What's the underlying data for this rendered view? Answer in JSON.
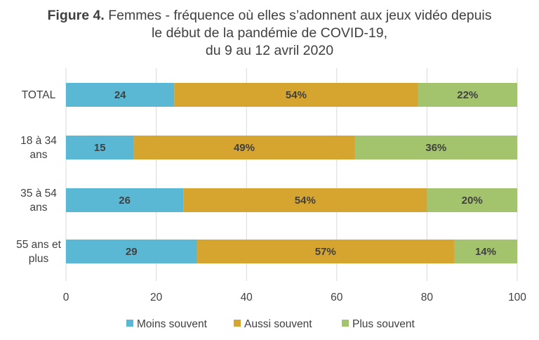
{
  "chart_data": {
    "type": "bar",
    "orientation": "horizontal",
    "stacked": true,
    "title_prefix": "Figure 4.",
    "title_lines": [
      "Femmes - fréquence où elles s’adonnent aux jeux vidéo depuis",
      "le début de la pandémie de COVID-19,",
      "du 9 au 12 avril 2020"
    ],
    "categories": [
      [
        "TOTAL"
      ],
      [
        "18 à 34",
        "ans"
      ],
      [
        "35 à 54",
        "ans"
      ],
      [
        "55 ans et",
        "plus"
      ]
    ],
    "series": [
      {
        "name": "Moins souvent",
        "color": "#5bb8d4",
        "values": [
          24,
          15,
          26,
          29
        ],
        "labels": [
          "24",
          "15",
          "26",
          "29"
        ]
      },
      {
        "name": "Aussi souvent",
        "color": "#d6a52f",
        "values": [
          54,
          49,
          54,
          57
        ],
        "labels": [
          "54%",
          "49%",
          "54%",
          "57%"
        ]
      },
      {
        "name": "Plus souvent",
        "color": "#a3c46d",
        "values": [
          22,
          36,
          20,
          14
        ],
        "labels": [
          "22%",
          "36%",
          "20%",
          "14%"
        ]
      }
    ],
    "xlim": [
      0,
      100
    ],
    "xticks": [
      "0",
      "20",
      "40",
      "60",
      "80",
      "100"
    ],
    "grid": true,
    "legend_position": "bottom"
  }
}
